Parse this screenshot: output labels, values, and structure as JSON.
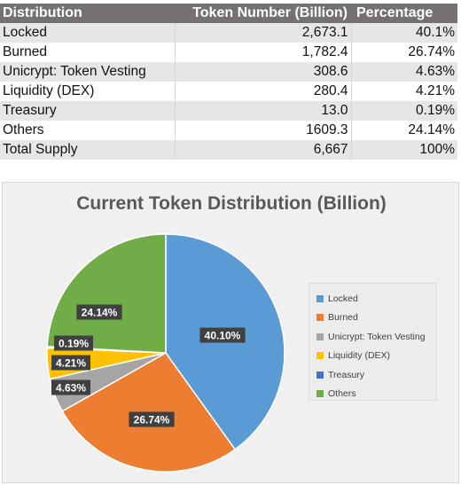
{
  "table": {
    "headers": [
      "Distribution",
      "Token Number (Billion)",
      "Percentage"
    ],
    "rows": [
      [
        "Locked",
        "2,673.1",
        "40.1%"
      ],
      [
        "Burned",
        "1,782.4",
        "26.74%"
      ],
      [
        "Unicrypt: Token Vesting",
        "308.6",
        "4.63%"
      ],
      [
        "Liquidity (DEX)",
        "280.4",
        "4.21%"
      ],
      [
        "Treasury",
        "13.0",
        "0.19%"
      ],
      [
        "Others",
        "1609.3",
        "24.14%"
      ],
      [
        "Total Supply",
        "6,667",
        "100%"
      ]
    ]
  },
  "chart_data": {
    "type": "pie",
    "title": "Current Token Distribution (Billion)",
    "categories": [
      "Locked",
      "Burned",
      "Unicrypt: Token Vesting",
      "Liquidity (DEX)",
      "Treasury",
      "Others"
    ],
    "values": [
      40.1,
      26.74,
      4.63,
      4.21,
      0.19,
      24.14
    ],
    "labels": [
      "40.10%",
      "26.74%",
      "4.63%",
      "4.21%",
      "0.19%",
      "24.14%"
    ],
    "colors": [
      "#5b9bd5",
      "#ed7d31",
      "#a5a5a5",
      "#ffc000",
      "#4472c4",
      "#70ad47"
    ],
    "legend_position": "right",
    "start_angle": "12 o'clock, clockwise"
  }
}
